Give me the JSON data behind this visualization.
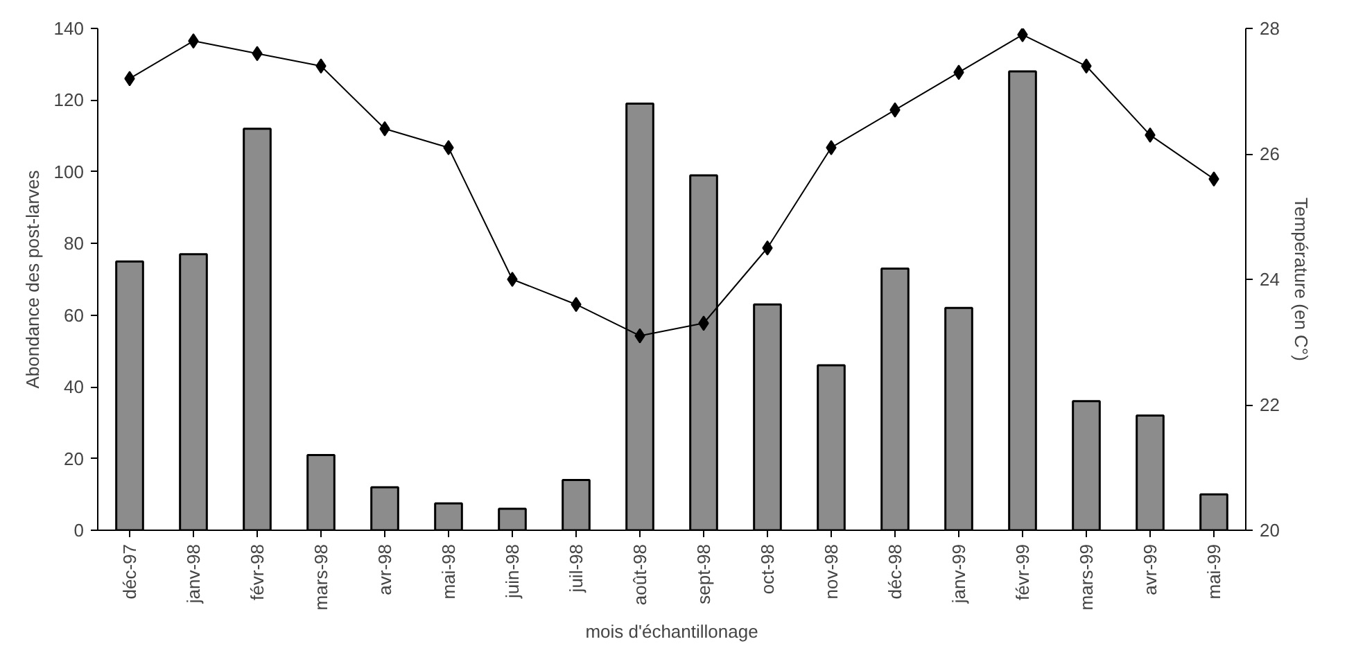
{
  "chart_data": {
    "type": "bar",
    "xlabel": "mois d'échantillonage",
    "ylabel": "Abondance des post-larves",
    "y2label": "Température (en C°)",
    "categories": [
      "déc-97",
      "janv-98",
      "févr-98",
      "mars-98",
      "avr-98",
      "mai-98",
      "juin-98",
      "juil-98",
      "août-98",
      "sept-98",
      "oct-98",
      "nov-98",
      "déc-98",
      "janv-99",
      "févr-99",
      "mars-99",
      "avr-99",
      "mai-99"
    ],
    "series": [
      {
        "color": "#8c8c8c",
        "values": [
          75,
          77,
          112,
          21,
          12,
          7.5,
          6,
          14,
          119,
          99,
          63,
          46,
          73,
          62,
          128,
          36,
          32,
          10
        ]
      },
      {
        "type": "line",
        "axis": "y2",
        "color": "#000000",
        "marker": "diamond",
        "values": [
          27.2,
          27.8,
          27.6,
          27.4,
          26.4,
          26.1,
          24.0,
          23.6,
          23.1,
          23.3,
          24.5,
          26.1,
          26.7,
          27.3,
          27.9,
          27.4,
          26.3,
          25.6
        ]
      }
    ],
    "ylim": [
      0,
      140
    ],
    "yticks": [
      0,
      20,
      40,
      60,
      80,
      100,
      120,
      140
    ],
    "y2lim": [
      20,
      28
    ],
    "y2ticks": [
      20,
      22,
      24,
      26,
      28
    ],
    "grid": false
  }
}
